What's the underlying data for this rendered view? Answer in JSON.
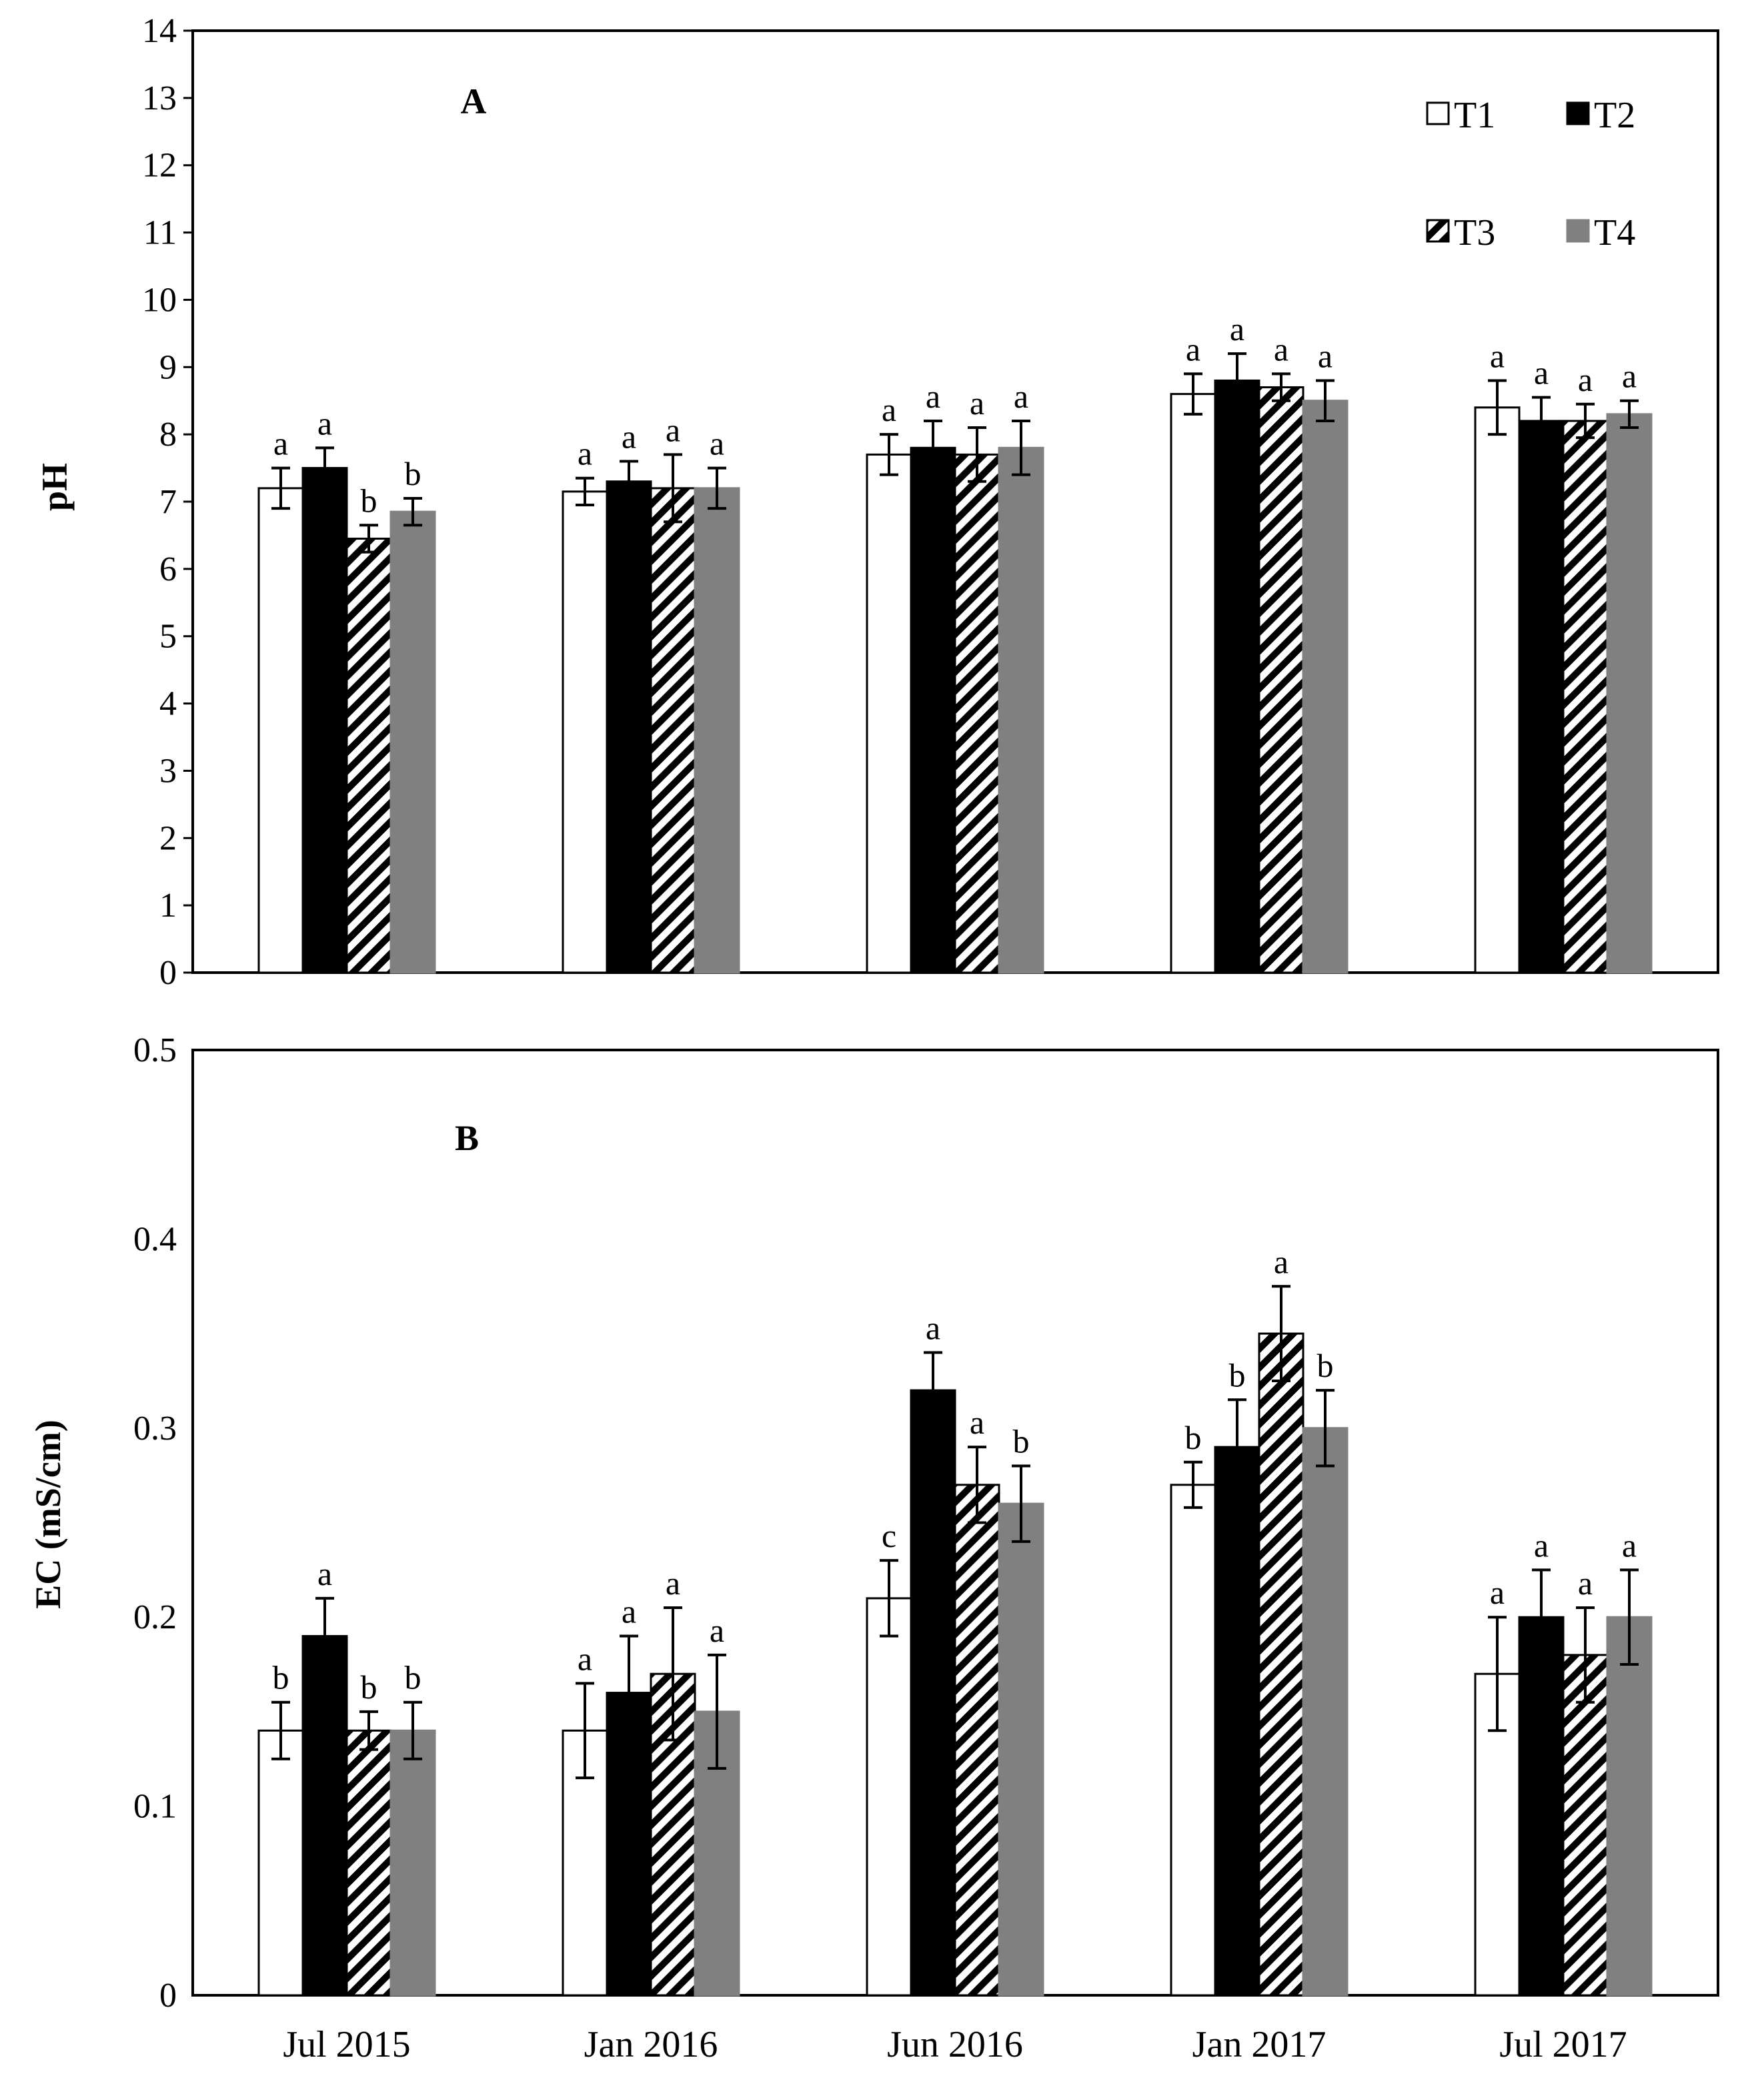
{
  "chart_data": [
    {
      "type": "bar",
      "panel": "A",
      "title": "",
      "xlabel": "",
      "ylabel": "pH",
      "ylim": [
        0,
        14
      ],
      "yticks": [
        "0",
        "1",
        "2",
        "3",
        "4",
        "5",
        "6",
        "7",
        "8",
        "9",
        "10",
        "11",
        "12",
        "13",
        "14"
      ],
      "categories": [
        "Jul 2015",
        "Jan 2016",
        "Jun 2016",
        "Jan 2017",
        "Jul 2017"
      ],
      "show_xlabels": false,
      "legend": {
        "position": "top-right",
        "entries": [
          "T1",
          "T2",
          "T3",
          "T4"
        ]
      },
      "series": [
        {
          "name": "T1",
          "style": "white",
          "values": [
            7.2,
            7.15,
            7.7,
            8.6,
            8.4
          ],
          "errors": [
            0.3,
            0.2,
            0.3,
            0.3,
            0.4
          ],
          "letters": [
            "a",
            "a",
            "a",
            "a",
            "a"
          ]
        },
        {
          "name": "T2",
          "style": "black",
          "values": [
            7.5,
            7.3,
            7.8,
            8.8,
            8.2
          ],
          "errors": [
            0.3,
            0.3,
            0.4,
            0.4,
            0.35
          ],
          "letters": [
            "a",
            "a",
            "a",
            "a",
            "a"
          ]
        },
        {
          "name": "T3",
          "style": "hatch",
          "values": [
            6.45,
            7.2,
            7.7,
            8.7,
            8.2
          ],
          "errors": [
            0.2,
            0.5,
            0.4,
            0.2,
            0.25
          ],
          "letters": [
            "b",
            "a",
            "a",
            "a",
            "a"
          ]
        },
        {
          "name": "T4",
          "style": "gray",
          "values": [
            6.85,
            7.2,
            7.8,
            8.5,
            8.3
          ],
          "errors": [
            0.2,
            0.3,
            0.4,
            0.3,
            0.2
          ],
          "letters": [
            "b",
            "a",
            "a",
            "a",
            "a"
          ]
        }
      ]
    },
    {
      "type": "bar",
      "panel": "B",
      "title": "",
      "xlabel": "",
      "ylabel": "EC (mS/cm)",
      "ylim": [
        0,
        0.5
      ],
      "yticks": [
        "0",
        "0.1",
        "0.2",
        "0.3",
        "0.4",
        "0.5"
      ],
      "categories": [
        "Jul 2015",
        "Jan 2016",
        "Jun 2016",
        "Jan 2017",
        "Jul 2017"
      ],
      "show_xlabels": true,
      "series": [
        {
          "name": "T1",
          "style": "white",
          "values": [
            0.14,
            0.14,
            0.21,
            0.27,
            0.17
          ],
          "errors": [
            0.015,
            0.025,
            0.02,
            0.012,
            0.03
          ],
          "letters": [
            "b",
            "a",
            "c",
            "b",
            "a"
          ]
        },
        {
          "name": "T2",
          "style": "black",
          "values": [
            0.19,
            0.16,
            0.32,
            0.29,
            0.2
          ],
          "errors": [
            0.02,
            0.03,
            0.02,
            0.025,
            0.025
          ],
          "letters": [
            "a",
            "a",
            "a",
            "b",
            "a"
          ]
        },
        {
          "name": "T3",
          "style": "hatch",
          "values": [
            0.14,
            0.17,
            0.27,
            0.35,
            0.18
          ],
          "errors": [
            0.01,
            0.035,
            0.02,
            0.025,
            0.025
          ],
          "letters": [
            "b",
            "a",
            "a",
            "a",
            "a"
          ]
        },
        {
          "name": "T4",
          "style": "gray",
          "values": [
            0.14,
            0.15,
            0.26,
            0.3,
            0.2
          ],
          "errors": [
            0.015,
            0.03,
            0.02,
            0.02,
            0.025
          ],
          "letters": [
            "b",
            "a",
            "b",
            "b",
            "a"
          ]
        }
      ]
    }
  ]
}
